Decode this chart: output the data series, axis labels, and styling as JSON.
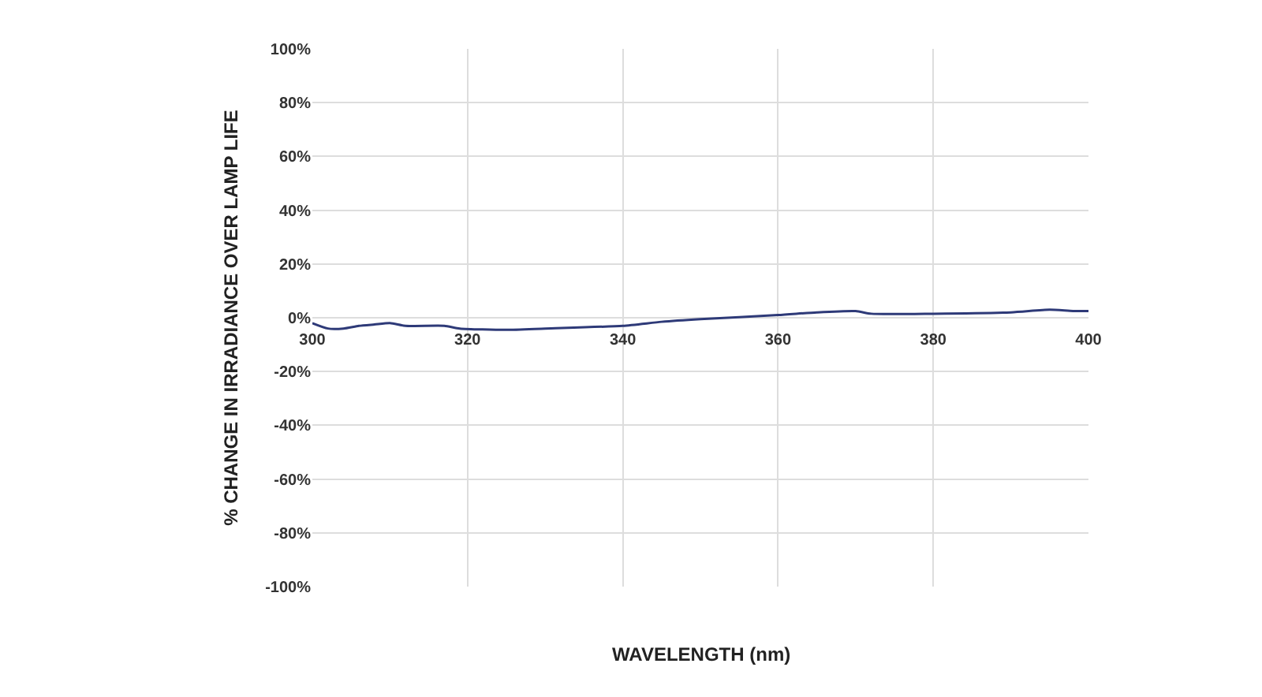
{
  "chart_data": {
    "type": "line",
    "xlabel": "WAVELENGTH (nm)",
    "ylabel": "% CHANGE IN IRRADIANCE OVER LAMP LIFE",
    "x": [
      300,
      302,
      304,
      306,
      308,
      310,
      312,
      317,
      319,
      325,
      330,
      340,
      345,
      350,
      360,
      365,
      370,
      372,
      380,
      390,
      395,
      398,
      400
    ],
    "series": [
      {
        "color": "#2e3a78",
        "values": [
          -2,
          -4,
          -4,
          -3,
          -2.5,
          -2,
          -3,
          -3,
          -4,
          -4.5,
          -4,
          -3,
          -1.5,
          -0.5,
          1,
          2,
          2.5,
          1.5,
          1.5,
          2,
          3,
          2.5,
          2.5
        ]
      }
    ],
    "xlim": [
      300,
      400
    ],
    "xticks": [
      300,
      320,
      340,
      360,
      380,
      400
    ],
    "ylim": [
      -100,
      100
    ],
    "yticks": [
      {
        "value": -100,
        "label": "-100%"
      },
      {
        "value": -80,
        "label": "-80%"
      },
      {
        "value": -60,
        "label": "-60%"
      },
      {
        "value": -40,
        "label": "-40%"
      },
      {
        "value": -20,
        "label": "-20%"
      },
      {
        "value": 0,
        "label": "0%"
      },
      {
        "value": 20,
        "label": "20%"
      },
      {
        "value": 40,
        "label": "40%"
      },
      {
        "value": 60,
        "label": "60%"
      },
      {
        "value": 80,
        "label": "80%"
      },
      {
        "value": 100,
        "label": "100%"
      }
    ],
    "grid": true
  }
}
